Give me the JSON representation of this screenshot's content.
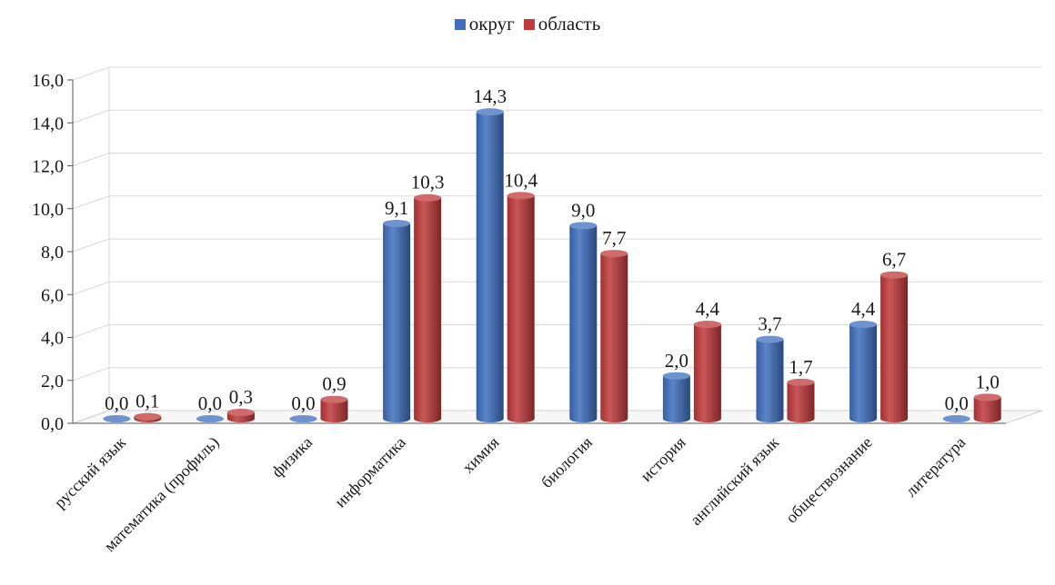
{
  "chart_data": {
    "type": "bar",
    "categories": [
      "русский язык",
      "математика (профиль)",
      "физика",
      "информатика",
      "химия",
      "биология",
      "история",
      "английский язык",
      "обществознание",
      "литература"
    ],
    "series": [
      {
        "name": "округ",
        "color": "#3f6fbe",
        "values": [
          0.0,
          0.0,
          0.0,
          9.1,
          14.3,
          9.0,
          2.0,
          3.7,
          4.4,
          0.0
        ],
        "labels": [
          "0,0",
          "0,0",
          "0,0",
          "9,1",
          "14,3",
          "9,0",
          "2,0",
          "3,7",
          "4,4",
          "0,0"
        ]
      },
      {
        "name": "область",
        "color": "#c0393b",
        "values": [
          0.1,
          0.3,
          0.9,
          10.3,
          10.4,
          7.7,
          4.4,
          1.7,
          6.7,
          1.0
        ],
        "labels": [
          "0,1",
          "0,3",
          "0,9",
          "10,3",
          "10,4",
          "7,7",
          "4,4",
          "1,7",
          "6,7",
          "1,0"
        ]
      }
    ],
    "ylim": [
      0,
      16
    ],
    "yticks": [
      "0,0",
      "2,0",
      "4,0",
      "6,0",
      "8,0",
      "10,0",
      "12,0",
      "14,0",
      "16,0"
    ],
    "grid": true,
    "legend_position": "top-center"
  }
}
